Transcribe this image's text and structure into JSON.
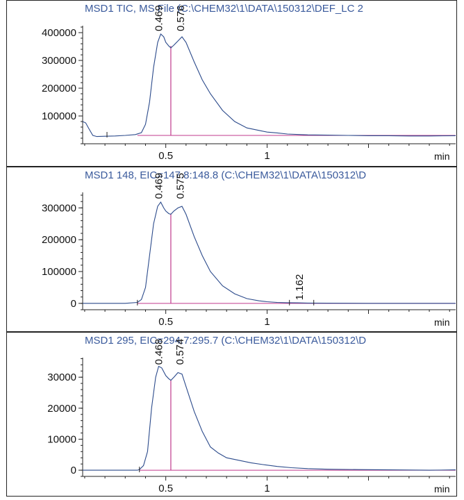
{
  "chart_data": [
    {
      "type": "line",
      "title": "MSD1 TIC, MS File (C:\\CHEM32\\1\\DATA\\150312\\DEF_LC 2",
      "xlim": [
        0.09,
        1.93
      ],
      "ylim": [
        0,
        455000
      ],
      "y_ticks": [
        100000,
        200000,
        300000,
        400000
      ],
      "y_tick_labels": [
        "100000",
        "200000",
        "300000",
        "400000"
      ],
      "x_ticks": [
        0.5,
        1
      ],
      "x_tick_labels": [
        "0.5",
        "1"
      ],
      "x_unit": "min",
      "series_color": "#2b4a8b",
      "baseline_color": "#c0398c",
      "baseline": {
        "x": [
          0.36,
          1.93
        ],
        "y": [
          30000,
          30000
        ]
      },
      "split": {
        "x": 0.525,
        "y_top": 352000
      },
      "peaks": [
        {
          "label": "0.469",
          "x": 0.469,
          "y": 405000
        },
        {
          "label": "0.576",
          "x": 0.576,
          "y": 405000
        }
      ],
      "tick_marks": [
        0.21
      ],
      "x": [
        0.09,
        0.105,
        0.12,
        0.14,
        0.16,
        0.2,
        0.25,
        0.3,
        0.35,
        0.38,
        0.4,
        0.42,
        0.44,
        0.46,
        0.475,
        0.49,
        0.5,
        0.515,
        0.525,
        0.54,
        0.56,
        0.58,
        0.6,
        0.64,
        0.68,
        0.72,
        0.78,
        0.84,
        0.9,
        0.96,
        1.0,
        1.05,
        1.1,
        1.2,
        1.3,
        1.4,
        1.5,
        1.6,
        1.7,
        1.8,
        1.93
      ],
      "y": [
        80000,
        75000,
        55000,
        30000,
        26000,
        27000,
        28000,
        30000,
        33000,
        40000,
        70000,
        150000,
        275000,
        365000,
        395000,
        385000,
        365000,
        352000,
        345000,
        355000,
        370000,
        385000,
        365000,
        295000,
        230000,
        180000,
        120000,
        80000,
        57000,
        48000,
        42000,
        39000,
        35000,
        32000,
        31000,
        30000,
        29000,
        29000,
        28000,
        28000,
        29000
      ]
    },
    {
      "type": "line",
      "title": "MSD1 148, EIC=147.8:148.8 (C:\\CHEM32\\1\\DATA\\150312\\D",
      "xlim": [
        0.09,
        1.93
      ],
      "ylim": [
        -20000,
        375000
      ],
      "y_ticks": [
        0,
        100000,
        200000,
        300000
      ],
      "y_tick_labels": [
        "0",
        "100000",
        "200000",
        "300000"
      ],
      "x_ticks": [
        0.5,
        1
      ],
      "x_tick_labels": [
        "0.5",
        "1"
      ],
      "x_unit": "min",
      "series_color": "#2b4a8b",
      "baseline_color": "#c0398c",
      "baseline": {
        "x": [
          0.36,
          1.93
        ],
        "y": [
          0,
          0
        ]
      },
      "split": {
        "x": 0.525,
        "y_top": 282000
      },
      "peaks": [
        {
          "label": "0.469",
          "x": 0.469,
          "y": 328000
        },
        {
          "label": "0.575",
          "x": 0.575,
          "y": 328000
        },
        {
          "label": "1.162",
          "x": 1.162,
          "y": 10000
        }
      ],
      "tick_marks": [
        0.36,
        1.11,
        1.23
      ],
      "x": [
        0.09,
        0.3,
        0.36,
        0.38,
        0.4,
        0.42,
        0.44,
        0.46,
        0.475,
        0.49,
        0.5,
        0.515,
        0.525,
        0.54,
        0.56,
        0.58,
        0.6,
        0.64,
        0.68,
        0.72,
        0.78,
        0.84,
        0.9,
        0.96,
        1.0,
        1.05,
        1.1,
        1.15,
        1.2,
        1.3,
        1.5,
        1.7,
        1.93
      ],
      "y": [
        0,
        0,
        3000,
        12000,
        50000,
        150000,
        250000,
        305000,
        318000,
        300000,
        290000,
        282000,
        280000,
        290000,
        300000,
        305000,
        280000,
        210000,
        150000,
        100000,
        55000,
        30000,
        15000,
        8000,
        5000,
        3000,
        2000,
        1500,
        1000,
        500,
        0,
        0,
        0
      ]
    },
    {
      "type": "line",
      "title": "MSD1 295, EIC=294.7:295.7 (C:\\CHEM32\\1\\DATA\\150312\\D",
      "xlim": [
        0.09,
        1.93
      ],
      "ylim": [
        -2000,
        39000
      ],
      "y_ticks": [
        0,
        10000,
        20000,
        30000
      ],
      "y_tick_labels": [
        "0",
        "10000",
        "20000",
        "30000"
      ],
      "x_ticks": [
        0.5,
        1
      ],
      "x_tick_labels": [
        "0.5",
        "1"
      ],
      "x_unit": "min",
      "series_color": "#2b4a8b",
      "baseline_color": "#c0398c",
      "baseline": {
        "x": [
          0.37,
          1.93
        ],
        "y": [
          0,
          0
        ]
      },
      "split": {
        "x": 0.525,
        "y_top": 29000
      },
      "peaks": [
        {
          "label": "0.468",
          "x": 0.468,
          "y": 34000
        },
        {
          "label": "0.574",
          "x": 0.574,
          "y": 34000
        }
      ],
      "tick_marks": [
        0.37
      ],
      "x": [
        0.09,
        0.36,
        0.37,
        0.39,
        0.41,
        0.43,
        0.45,
        0.465,
        0.48,
        0.5,
        0.515,
        0.525,
        0.54,
        0.56,
        0.58,
        0.6,
        0.64,
        0.68,
        0.72,
        0.76,
        0.8,
        0.86,
        0.92,
        0.98,
        1.05,
        1.12,
        1.2,
        1.3,
        1.45,
        1.6,
        1.8,
        1.93
      ],
      "y": [
        0,
        0,
        200,
        1500,
        6000,
        20000,
        30000,
        33500,
        33000,
        30500,
        29500,
        29000,
        30000,
        31500,
        31000,
        27000,
        19000,
        12500,
        7500,
        5500,
        4000,
        3200,
        2400,
        1800,
        1200,
        800,
        500,
        300,
        200,
        100,
        0,
        100
      ]
    }
  ]
}
